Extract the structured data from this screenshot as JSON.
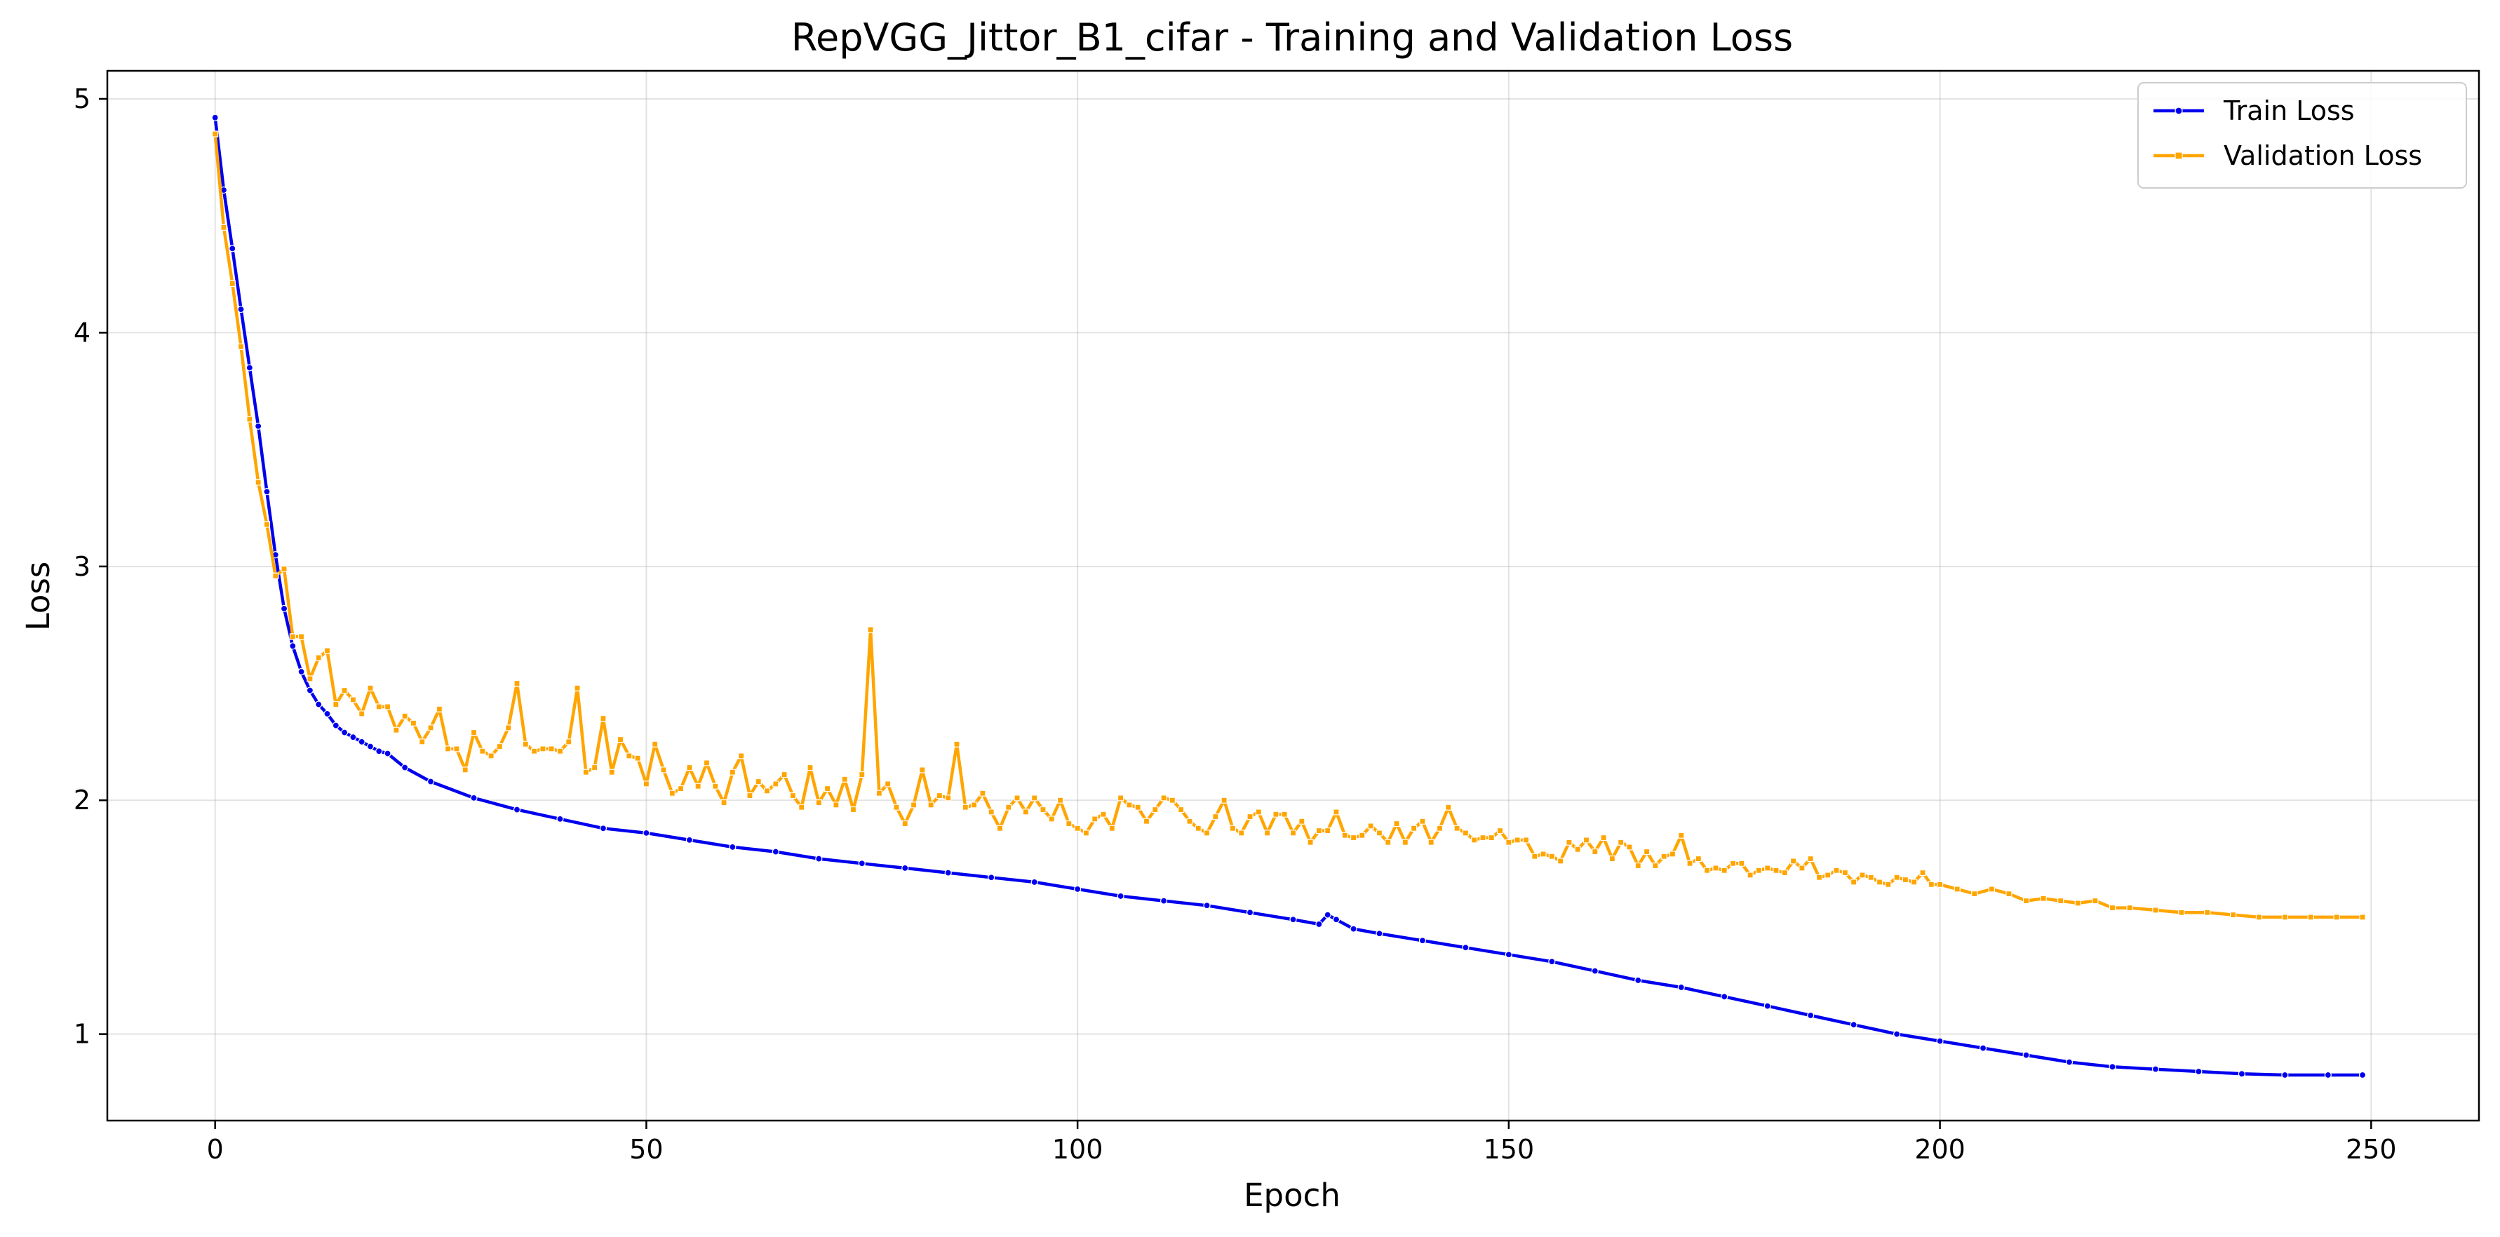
{
  "chart_data": {
    "type": "line",
    "title": "RepVGG_Jittor_B1_cifar - Training and Validation Loss",
    "xlabel": "Epoch",
    "ylabel": "Loss",
    "xlim": [
      -12.5,
      262.5
    ],
    "ylim": [
      0.63,
      5.12
    ],
    "xticks": [
      0,
      50,
      100,
      150,
      200,
      250
    ],
    "yticks": [
      1,
      2,
      3,
      4,
      5
    ],
    "grid": true,
    "legend_position": "top-right",
    "series": [
      {
        "name": "Train Loss",
        "color": "#0000ee",
        "marker": "circle",
        "points": [
          [
            0,
            4.92
          ],
          [
            1,
            4.61
          ],
          [
            2,
            4.36
          ],
          [
            3,
            4.1
          ],
          [
            4,
            3.85
          ],
          [
            5,
            3.6
          ],
          [
            6,
            3.32
          ],
          [
            7,
            3.05
          ],
          [
            8,
            2.82
          ],
          [
            9,
            2.66
          ],
          [
            10,
            2.55
          ],
          [
            11,
            2.47
          ],
          [
            12,
            2.41
          ],
          [
            13,
            2.37
          ],
          [
            14,
            2.32
          ],
          [
            15,
            2.29
          ],
          [
            16,
            2.27
          ],
          [
            17,
            2.25
          ],
          [
            18,
            2.23
          ],
          [
            19,
            2.21
          ],
          [
            20,
            2.2
          ],
          [
            22,
            2.14
          ],
          [
            25,
            2.08
          ],
          [
            30,
            2.01
          ],
          [
            35,
            1.96
          ],
          [
            40,
            1.92
          ],
          [
            45,
            1.88
          ],
          [
            50,
            1.86
          ],
          [
            55,
            1.83
          ],
          [
            60,
            1.8
          ],
          [
            65,
            1.78
          ],
          [
            70,
            1.75
          ],
          [
            75,
            1.73
          ],
          [
            80,
            1.71
          ],
          [
            85,
            1.69
          ],
          [
            90,
            1.67
          ],
          [
            95,
            1.65
          ],
          [
            100,
            1.62
          ],
          [
            105,
            1.59
          ],
          [
            110,
            1.57
          ],
          [
            115,
            1.55
          ],
          [
            120,
            1.52
          ],
          [
            125,
            1.49
          ],
          [
            128,
            1.47
          ],
          [
            129,
            1.51
          ],
          [
            130,
            1.49
          ],
          [
            132,
            1.45
          ],
          [
            135,
            1.43
          ],
          [
            140,
            1.4
          ],
          [
            145,
            1.37
          ],
          [
            150,
            1.34
          ],
          [
            155,
            1.31
          ],
          [
            160,
            1.27
          ],
          [
            165,
            1.23
          ],
          [
            170,
            1.2
          ],
          [
            175,
            1.16
          ],
          [
            180,
            1.12
          ],
          [
            185,
            1.08
          ],
          [
            190,
            1.04
          ],
          [
            195,
            1.0
          ],
          [
            200,
            0.97
          ],
          [
            205,
            0.94
          ],
          [
            210,
            0.91
          ],
          [
            215,
            0.88
          ],
          [
            220,
            0.86
          ],
          [
            225,
            0.85
          ],
          [
            230,
            0.84
          ],
          [
            235,
            0.83
          ],
          [
            240,
            0.825
          ],
          [
            245,
            0.825
          ],
          [
            249,
            0.825
          ]
        ]
      },
      {
        "name": "Validation Loss",
        "color": "#ffa500",
        "marker": "square",
        "points": [
          [
            0,
            4.85
          ],
          [
            1,
            4.45
          ],
          [
            2,
            4.21
          ],
          [
            3,
            3.94
          ],
          [
            4,
            3.63
          ],
          [
            5,
            3.36
          ],
          [
            6,
            3.18
          ],
          [
            7,
            2.96
          ],
          [
            8,
            2.99
          ],
          [
            9,
            2.7
          ],
          [
            10,
            2.7
          ],
          [
            11,
            2.52
          ],
          [
            12,
            2.61
          ],
          [
            13,
            2.64
          ],
          [
            14,
            2.41
          ],
          [
            15,
            2.47
          ],
          [
            16,
            2.43
          ],
          [
            17,
            2.37
          ],
          [
            18,
            2.48
          ],
          [
            19,
            2.4
          ],
          [
            20,
            2.4
          ],
          [
            21,
            2.3
          ],
          [
            22,
            2.36
          ],
          [
            23,
            2.33
          ],
          [
            24,
            2.25
          ],
          [
            25,
            2.31
          ],
          [
            26,
            2.39
          ],
          [
            27,
            2.22
          ],
          [
            28,
            2.22
          ],
          [
            29,
            2.13
          ],
          [
            30,
            2.29
          ],
          [
            31,
            2.21
          ],
          [
            32,
            2.19
          ],
          [
            33,
            2.23
          ],
          [
            34,
            2.31
          ],
          [
            35,
            2.5
          ],
          [
            36,
            2.24
          ],
          [
            37,
            2.21
          ],
          [
            38,
            2.22
          ],
          [
            39,
            2.22
          ],
          [
            40,
            2.21
          ],
          [
            41,
            2.25
          ],
          [
            42,
            2.48
          ],
          [
            43,
            2.12
          ],
          [
            44,
            2.14
          ],
          [
            45,
            2.35
          ],
          [
            46,
            2.12
          ],
          [
            47,
            2.26
          ],
          [
            48,
            2.19
          ],
          [
            49,
            2.18
          ],
          [
            50,
            2.07
          ],
          [
            51,
            2.24
          ],
          [
            52,
            2.13
          ],
          [
            53,
            2.03
          ],
          [
            54,
            2.05
          ],
          [
            55,
            2.14
          ],
          [
            56,
            2.06
          ],
          [
            57,
            2.16
          ],
          [
            58,
            2.06
          ],
          [
            59,
            1.99
          ],
          [
            60,
            2.12
          ],
          [
            61,
            2.19
          ],
          [
            62,
            2.02
          ],
          [
            63,
            2.08
          ],
          [
            64,
            2.04
          ],
          [
            65,
            2.07
          ],
          [
            66,
            2.11
          ],
          [
            67,
            2.02
          ],
          [
            68,
            1.97
          ],
          [
            69,
            2.14
          ],
          [
            70,
            1.99
          ],
          [
            71,
            2.05
          ],
          [
            72,
            1.98
          ],
          [
            73,
            2.09
          ],
          [
            74,
            1.96
          ],
          [
            75,
            2.11
          ],
          [
            76,
            2.73
          ],
          [
            77,
            2.03
          ],
          [
            78,
            2.07
          ],
          [
            79,
            1.97
          ],
          [
            80,
            1.9
          ],
          [
            81,
            1.98
          ],
          [
            82,
            2.13
          ],
          [
            83,
            1.98
          ],
          [
            84,
            2.02
          ],
          [
            85,
            2.01
          ],
          [
            86,
            2.24
          ],
          [
            87,
            1.97
          ],
          [
            88,
            1.98
          ],
          [
            89,
            2.03
          ],
          [
            90,
            1.95
          ],
          [
            91,
            1.88
          ],
          [
            92,
            1.97
          ],
          [
            93,
            2.01
          ],
          [
            94,
            1.95
          ],
          [
            95,
            2.01
          ],
          [
            96,
            1.96
          ],
          [
            97,
            1.92
          ],
          [
            98,
            2.0
          ],
          [
            99,
            1.9
          ],
          [
            100,
            1.88
          ],
          [
            101,
            1.86
          ],
          [
            102,
            1.92
          ],
          [
            103,
            1.94
          ],
          [
            104,
            1.88
          ],
          [
            105,
            2.01
          ],
          [
            106,
            1.98
          ],
          [
            107,
            1.97
          ],
          [
            108,
            1.91
          ],
          [
            109,
            1.96
          ],
          [
            110,
            2.01
          ],
          [
            111,
            2.0
          ],
          [
            112,
            1.96
          ],
          [
            113,
            1.91
          ],
          [
            114,
            1.88
          ],
          [
            115,
            1.86
          ],
          [
            116,
            1.93
          ],
          [
            117,
            2.0
          ],
          [
            118,
            1.88
          ],
          [
            119,
            1.86
          ],
          [
            120,
            1.93
          ],
          [
            121,
            1.95
          ],
          [
            122,
            1.86
          ],
          [
            123,
            1.94
          ],
          [
            124,
            1.94
          ],
          [
            125,
            1.86
          ],
          [
            126,
            1.91
          ],
          [
            127,
            1.82
          ],
          [
            128,
            1.87
          ],
          [
            129,
            1.87
          ],
          [
            130,
            1.95
          ],
          [
            131,
            1.85
          ],
          [
            132,
            1.84
          ],
          [
            133,
            1.85
          ],
          [
            134,
            1.89
          ],
          [
            135,
            1.86
          ],
          [
            136,
            1.82
          ],
          [
            137,
            1.9
          ],
          [
            138,
            1.82
          ],
          [
            139,
            1.88
          ],
          [
            140,
            1.91
          ],
          [
            141,
            1.82
          ],
          [
            142,
            1.88
          ],
          [
            143,
            1.97
          ],
          [
            144,
            1.88
          ],
          [
            145,
            1.86
          ],
          [
            146,
            1.83
          ],
          [
            147,
            1.84
          ],
          [
            148,
            1.84
          ],
          [
            149,
            1.87
          ],
          [
            150,
            1.82
          ],
          [
            151,
            1.83
          ],
          [
            152,
            1.83
          ],
          [
            153,
            1.76
          ],
          [
            154,
            1.77
          ],
          [
            155,
            1.76
          ],
          [
            156,
            1.74
          ],
          [
            157,
            1.82
          ],
          [
            158,
            1.79
          ],
          [
            159,
            1.83
          ],
          [
            160,
            1.78
          ],
          [
            161,
            1.84
          ],
          [
            162,
            1.75
          ],
          [
            163,
            1.82
          ],
          [
            164,
            1.8
          ],
          [
            165,
            1.72
          ],
          [
            166,
            1.78
          ],
          [
            167,
            1.72
          ],
          [
            168,
            1.76
          ],
          [
            169,
            1.77
          ],
          [
            170,
            1.85
          ],
          [
            171,
            1.73
          ],
          [
            172,
            1.75
          ],
          [
            173,
            1.7
          ],
          [
            174,
            1.71
          ],
          [
            175,
            1.7
          ],
          [
            176,
            1.73
          ],
          [
            177,
            1.73
          ],
          [
            178,
            1.68
          ],
          [
            179,
            1.7
          ],
          [
            180,
            1.71
          ],
          [
            181,
            1.7
          ],
          [
            182,
            1.69
          ],
          [
            183,
            1.74
          ],
          [
            184,
            1.71
          ],
          [
            185,
            1.75
          ],
          [
            186,
            1.67
          ],
          [
            187,
            1.68
          ],
          [
            188,
            1.7
          ],
          [
            189,
            1.69
          ],
          [
            190,
            1.65
          ],
          [
            191,
            1.68
          ],
          [
            192,
            1.67
          ],
          [
            193,
            1.65
          ],
          [
            194,
            1.64
          ],
          [
            195,
            1.67
          ],
          [
            196,
            1.66
          ],
          [
            197,
            1.65
          ],
          [
            198,
            1.69
          ],
          [
            199,
            1.64
          ],
          [
            200,
            1.64
          ],
          [
            202,
            1.62
          ],
          [
            204,
            1.6
          ],
          [
            206,
            1.62
          ],
          [
            208,
            1.6
          ],
          [
            210,
            1.57
          ],
          [
            212,
            1.58
          ],
          [
            214,
            1.57
          ],
          [
            216,
            1.56
          ],
          [
            218,
            1.57
          ],
          [
            220,
            1.54
          ],
          [
            222,
            1.54
          ],
          [
            225,
            1.53
          ],
          [
            228,
            1.52
          ],
          [
            231,
            1.52
          ],
          [
            234,
            1.51
          ],
          [
            237,
            1.5
          ],
          [
            240,
            1.5
          ],
          [
            243,
            1.5
          ],
          [
            246,
            1.5
          ],
          [
            249,
            1.5
          ]
        ]
      }
    ]
  }
}
